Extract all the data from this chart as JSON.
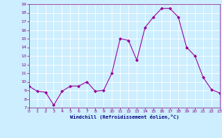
{
  "x": [
    0,
    1,
    2,
    3,
    4,
    5,
    6,
    7,
    8,
    9,
    10,
    11,
    12,
    13,
    14,
    15,
    16,
    17,
    18,
    19,
    20,
    21,
    22,
    23
  ],
  "y": [
    9.5,
    8.9,
    8.8,
    7.3,
    8.9,
    9.5,
    9.5,
    10.0,
    8.9,
    9.0,
    11.0,
    15.0,
    14.8,
    12.5,
    16.3,
    17.5,
    18.5,
    18.5,
    17.5,
    14.0,
    13.0,
    10.5,
    9.1,
    8.7
  ],
  "line_color": "#990099",
  "marker": "D",
  "marker_size": 2,
  "bg_color": "#cceeff",
  "grid_color": "#ffffff",
  "xlabel": "Windchill (Refroidissement éolien,°C)",
  "xlabel_color": "#000080",
  "tick_color": "#800080",
  "ylim": [
    7,
    19
  ],
  "xlim": [
    0,
    23
  ],
  "yticks": [
    7,
    8,
    9,
    10,
    11,
    12,
    13,
    14,
    15,
    16,
    17,
    18,
    19
  ],
  "xticks": [
    0,
    1,
    2,
    3,
    4,
    5,
    6,
    7,
    8,
    9,
    10,
    11,
    12,
    13,
    14,
    15,
    16,
    17,
    18,
    19,
    20,
    21,
    22,
    23
  ]
}
